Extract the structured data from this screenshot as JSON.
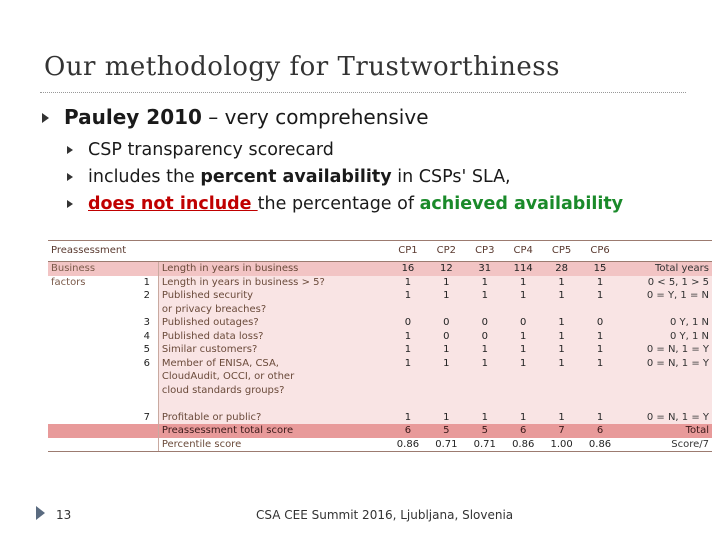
{
  "title": "Our methodology for Trustworthiness",
  "bullet1": {
    "bold": "Pauley 2010",
    "rest": " – very comprehensive"
  },
  "sub1": "CSP transparency scorecard",
  "sub2": {
    "pre": "includes the ",
    "bold": "percent availability",
    "post": " in CSPs' SLA,"
  },
  "sub3": {
    "red": "does not include ",
    "mid": "the percentage of ",
    "green": "achieved availability"
  },
  "table": {
    "header": {
      "col0": "Preassessment",
      "cps": [
        "CP1",
        "CP2",
        "CP3",
        "CP4",
        "CP5",
        "CP6"
      ]
    },
    "rows": [
      {
        "g": "Business",
        "n": "",
        "c": "Length in years in business",
        "v": [
          "16",
          "12",
          "31",
          "114",
          "28",
          "15"
        ],
        "s": "Total years"
      },
      {
        "g": "factors",
        "n": "1",
        "c": "Length in years in business > 5?",
        "v": [
          "1",
          "1",
          "1",
          "1",
          "1",
          "1"
        ],
        "s": "0 < 5, 1 > 5"
      },
      {
        "g": "",
        "n": "2",
        "c": "Published security",
        "v": [
          "1",
          "1",
          "1",
          "1",
          "1",
          "1"
        ],
        "s": "0 = Y, 1 = N"
      },
      {
        "g": "",
        "n": "",
        "c": "or privacy breaches?",
        "v": [
          "",
          "",
          "",
          "",
          "",
          ""
        ],
        "s": ""
      },
      {
        "g": "",
        "n": "3",
        "c": "Published outages?",
        "v": [
          "0",
          "0",
          "0",
          "0",
          "1",
          "0"
        ],
        "s": "0   Y, 1   N"
      },
      {
        "g": "",
        "n": "4",
        "c": "Published data loss?",
        "v": [
          "1",
          "0",
          "0",
          "1",
          "1",
          "1"
        ],
        "s": "0   Y, 1   N"
      },
      {
        "g": "",
        "n": "5",
        "c": "Similar customers?",
        "v": [
          "1",
          "1",
          "1",
          "1",
          "1",
          "1"
        ],
        "s": "0 = N, 1 = Y"
      },
      {
        "g": "",
        "n": "6",
        "c": "Member of ENISA, CSA,",
        "v": [
          "1",
          "1",
          "1",
          "1",
          "1",
          "1"
        ],
        "s": "0 = N, 1 = Y"
      },
      {
        "g": "",
        "n": "",
        "c": "CloudAudit, OCCI, or other",
        "v": [
          "",
          "",
          "",
          "",
          "",
          ""
        ],
        "s": ""
      },
      {
        "g": "",
        "n": "",
        "c": "cloud standards groups?",
        "v": [
          "",
          "",
          "",
          "",
          "",
          ""
        ],
        "s": ""
      },
      {
        "g": "",
        "n": "",
        "c": "",
        "v": [
          "",
          "",
          "",
          "",
          "",
          ""
        ],
        "s": ""
      },
      {
        "g": "",
        "n": "7",
        "c": "Profitable or public?",
        "v": [
          "1",
          "1",
          "1",
          "1",
          "1",
          "1"
        ],
        "s": "0 = N, 1 = Y"
      }
    ],
    "total": {
      "c": "Preassessment total score",
      "v": [
        "6",
        "5",
        "5",
        "6",
        "7",
        "6"
      ],
      "s": "Total"
    },
    "percentile": {
      "c": "Percentile score",
      "v": [
        "0.86",
        "0.71",
        "0.71",
        "0.86",
        "1.00",
        "0.86"
      ],
      "s": "Score/7"
    }
  },
  "footer": {
    "page": "13",
    "text": "CSA CEE Summit 2016, Ljubljana, Slovenia"
  }
}
